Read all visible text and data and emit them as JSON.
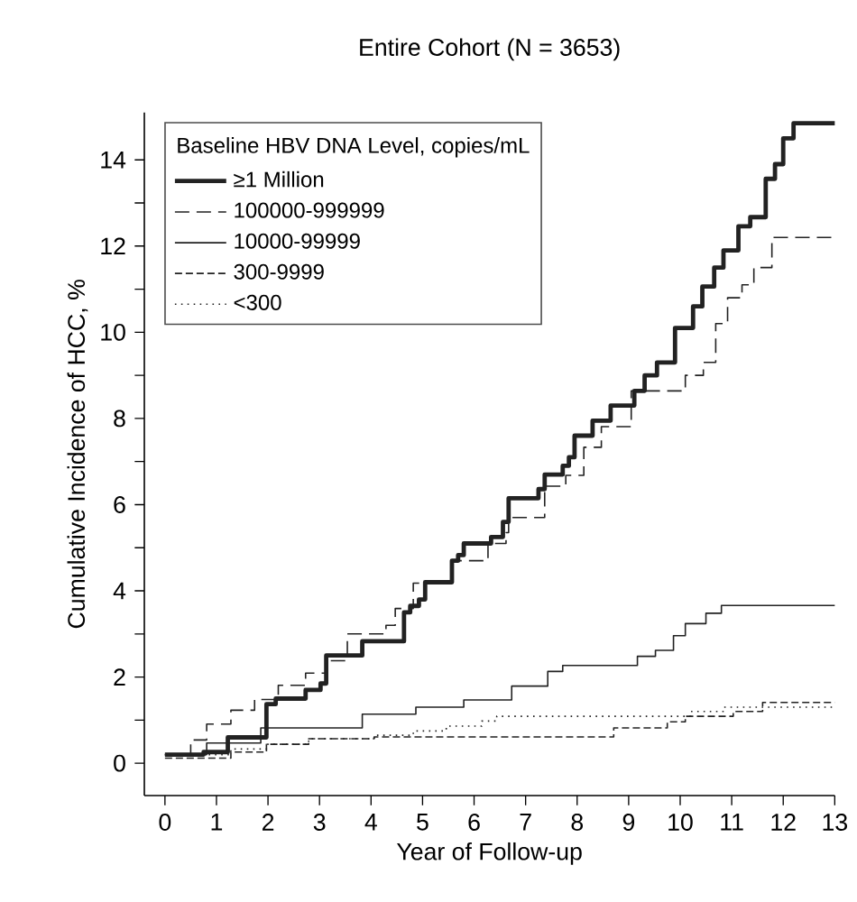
{
  "chart_data": {
    "type": "step",
    "title": "Entire Cohort (N = 3653)",
    "xlabel": "Year of Follow-up",
    "ylabel": "Cumulative Incidence of HCC, %",
    "legend_title": "Baseline HBV DNA Level, copies/mL",
    "xlim": [
      -0.4,
      13
    ],
    "ylim": [
      -0.75,
      15.1
    ],
    "xticks": [
      0,
      1,
      2,
      3,
      4,
      5,
      6,
      7,
      8,
      9,
      10,
      11,
      12,
      13
    ],
    "yticks": [
      0,
      {
        "value": 1,
        "label": null
      },
      2,
      {
        "value": 3,
        "label": null
      },
      4,
      {
        "value": 5,
        "label": null
      },
      6,
      {
        "value": 7,
        "label": null
      },
      8,
      {
        "value": 9,
        "label": null
      },
      10,
      {
        "value": 11,
        "label": null
      },
      12,
      {
        "value": 13,
        "label": null
      },
      14
    ],
    "legend": "top left",
    "grid": false,
    "marker": "none",
    "series": [
      {
        "name": "≥1 Million",
        "color": "#222222",
        "line_style": "solid",
        "x": [
          0,
          0.75,
          1.22,
          1.97,
          2.15,
          2.73,
          3.02,
          3.13,
          3.83,
          4.64,
          4.76,
          4.93,
          5.05,
          5.57,
          5.69,
          5.8,
          6.33,
          6.56,
          6.67,
          7.25,
          7.37,
          7.72,
          7.84,
          7.95,
          8.3,
          8.65,
          9.11,
          9.31,
          9.55,
          9.9,
          10.25,
          10.43,
          10.66,
          10.84,
          11.13,
          11.36,
          11.66,
          11.84,
          12.0,
          12.2,
          13
        ],
        "values": [
          0.2,
          0.26,
          0.6,
          1.37,
          1.5,
          1.7,
          1.85,
          2.5,
          2.83,
          3.5,
          3.65,
          3.8,
          4.2,
          4.7,
          4.83,
          5.1,
          5.25,
          5.6,
          6.15,
          6.36,
          6.7,
          6.9,
          7.1,
          7.6,
          7.95,
          8.3,
          8.64,
          9.0,
          9.3,
          10.1,
          10.6,
          11.06,
          11.5,
          11.9,
          12.46,
          12.67,
          13.56,
          13.9,
          14.5,
          14.85,
          14.85
        ]
      },
      {
        "name": "100000-999999",
        "color": "#222222",
        "line_style": "dashed",
        "x": [
          0,
          0.5,
          0.81,
          1.28,
          1.74,
          2.2,
          2.73,
          3.13,
          3.54,
          4.29,
          4.47,
          4.82,
          5.57,
          6.27,
          6.62,
          6.67,
          7.37,
          7.78,
          8.13,
          8.47,
          9.05,
          10.1,
          10.45,
          10.69,
          10.92,
          11.2,
          11.43,
          11.78,
          13
        ],
        "values": [
          0.2,
          0.54,
          0.91,
          1.23,
          1.48,
          1.81,
          2.09,
          2.38,
          3.0,
          3.2,
          3.59,
          4.18,
          4.7,
          5.1,
          5.35,
          5.7,
          6.43,
          6.68,
          7.33,
          7.81,
          8.64,
          9.0,
          9.3,
          10.2,
          10.8,
          11.1,
          11.5,
          12.2,
          12.2
        ]
      },
      {
        "name": "10000-99999",
        "color": "#222222",
        "line_style": "solid",
        "x": [
          0,
          0.81,
          1.86,
          3.83,
          4.87,
          5.8,
          6.73,
          7.43,
          7.72,
          9.17,
          9.52,
          9.87,
          10.1,
          10.5,
          10.8,
          13
        ],
        "values": [
          0.2,
          0.47,
          0.82,
          1.14,
          1.3,
          1.47,
          1.79,
          2.13,
          2.27,
          2.48,
          2.62,
          2.96,
          3.24,
          3.48,
          3.66,
          3.66
        ]
      },
      {
        "name": "300-9999",
        "color": "#222222",
        "line_style": "dashed",
        "x": [
          0,
          1.28,
          1.97,
          2.79,
          4.06,
          8.71,
          9.75,
          10.1,
          11.03,
          11.6,
          13
        ],
        "values": [
          0.12,
          0.26,
          0.44,
          0.57,
          0.61,
          0.82,
          0.96,
          1.09,
          1.2,
          1.41,
          1.41
        ]
      },
      {
        "name": "<300",
        "color": "#222222",
        "line_style": "dotted",
        "x": [
          0,
          1.28,
          1.97,
          2.79,
          4.06,
          4.82,
          5.46,
          6.15,
          6.44,
          10.2,
          10.85,
          13
        ],
        "values": [
          0.2,
          0.33,
          0.44,
          0.57,
          0.65,
          0.75,
          0.86,
          0.98,
          1.09,
          1.2,
          1.3,
          1.3
        ]
      }
    ]
  }
}
